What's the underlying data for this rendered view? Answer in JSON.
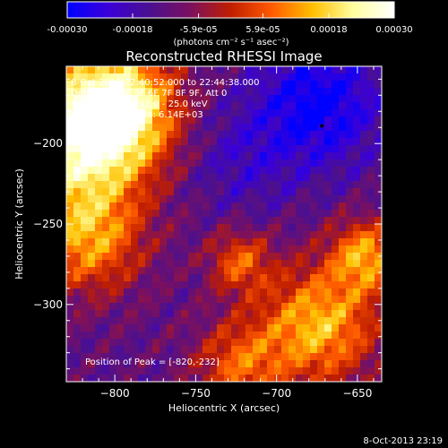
{
  "colorbar": {
    "tick_labels": [
      "-0.00030",
      "-0.00018",
      "-5.9e-05",
      "5.9e-05",
      "0.00018",
      "0.00030"
    ],
    "tick_values": [
      -0.0003,
      -0.00018,
      -5.9e-05,
      5.9e-05,
      0.00018,
      0.0003
    ],
    "range": [
      -0.0003,
      0.0003
    ],
    "units_label": "(photons cm⁻² s⁻¹ asec⁻²)",
    "colors": [
      "#0000ff",
      "#3a00d8",
      "#4a1090",
      "#7a1060",
      "#c01e00",
      "#ff5a00",
      "#ffc000",
      "#ffffa0",
      "#ffffff"
    ]
  },
  "chart_data": {
    "type": "heatmap",
    "title": "Reconstructed RHESSI Image",
    "xlabel": "Heliocentric X (arcsec)",
    "ylabel": "Heliocentric Y (arcsec)",
    "xlim": [
      -830,
      -635
    ],
    "ylim": [
      -348,
      -152
    ],
    "x_ticks": [
      -800,
      -750,
      -700,
      -650
    ],
    "y_ticks": [
      -200,
      -250,
      -300
    ],
    "x_tick_labels": [
      "−800",
      "−750",
      "−700",
      "−650"
    ],
    "y_tick_labels": [
      "−200",
      "−250",
      "−300"
    ],
    "info_lines": [
      " 8-Oct-2013 22:40:52.000 to 22:44:38.000",
      "Detectors: 3F 5F 6F 7F 8F 9F, Att 0",
      "Energy Range: 12.0 - 25.0 keV",
      "Clean     Total counts: 6.14E+03"
    ],
    "peak_label": "Position of Peak = [-820,-232]",
    "peak_position": [
      -820,
      -232
    ],
    "timestamp": "8-Oct-2013 23:19",
    "grid": false
  }
}
